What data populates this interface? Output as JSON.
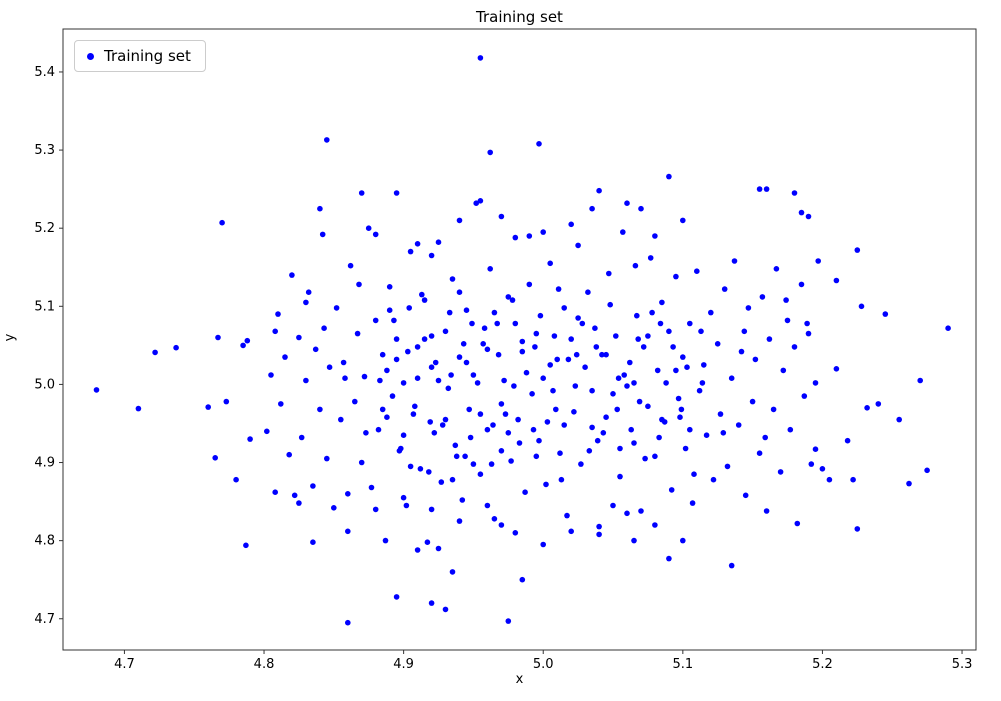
{
  "chart_data": {
    "type": "scatter",
    "title": "Training set",
    "xlabel": "x",
    "ylabel": "y",
    "legend": {
      "entries": [
        {
          "label": "Training set",
          "color": "#0000ff"
        }
      ],
      "position": "upper left"
    },
    "marker": {
      "color": "#0000ff",
      "radius_px": 2.8
    },
    "x_range": [
      4.656,
      5.31
    ],
    "y_range": [
      4.66,
      5.455
    ],
    "x_ticks": [
      4.7,
      4.8,
      4.9,
      5.0,
      5.1,
      5.2,
      5.3
    ],
    "y_ticks": [
      4.7,
      4.8,
      4.9,
      5.0,
      5.1,
      5.2,
      5.3,
      5.4
    ],
    "grid": false,
    "points": [
      [
        4.955,
        5.418
      ],
      [
        4.845,
        5.313
      ],
      [
        4.962,
        5.297
      ],
      [
        4.997,
        5.308
      ],
      [
        4.68,
        4.993
      ],
      [
        4.71,
        4.969
      ],
      [
        4.722,
        5.041
      ],
      [
        4.737,
        5.047
      ],
      [
        4.76,
        4.971
      ],
      [
        4.767,
        5.06
      ],
      [
        4.77,
        5.207
      ],
      [
        4.765,
        4.906
      ],
      [
        4.773,
        4.978
      ],
      [
        4.78,
        4.878
      ],
      [
        4.785,
        5.05
      ],
      [
        4.788,
        5.056
      ],
      [
        4.787,
        4.794
      ],
      [
        4.79,
        4.93
      ],
      [
        5.29,
        5.072
      ],
      [
        5.275,
        4.89
      ],
      [
        5.27,
        5.005
      ],
      [
        5.262,
        4.873
      ],
      [
        5.255,
        4.955
      ],
      [
        5.245,
        5.09
      ],
      [
        5.24,
        4.975
      ],
      [
        5.232,
        4.97
      ],
      [
        5.228,
        5.1
      ],
      [
        5.225,
        5.172
      ],
      [
        5.225,
        4.815
      ],
      [
        5.222,
        4.878
      ],
      [
        5.218,
        4.928
      ],
      [
        5.21,
        5.02
      ],
      [
        5.205,
        4.878
      ],
      [
        5.195,
        4.917
      ],
      [
        5.19,
        5.215
      ],
      [
        5.185,
        5.22
      ],
      [
        5.18,
        5.245
      ],
      [
        5.155,
        5.25
      ],
      [
        5.21,
        5.133
      ],
      [
        4.86,
        4.695
      ],
      [
        4.975,
        4.697
      ],
      [
        4.93,
        4.712
      ],
      [
        4.92,
        4.72
      ],
      [
        4.895,
        4.728
      ],
      [
        4.935,
        4.76
      ],
      [
        4.985,
        4.75
      ],
      [
        5.09,
        4.777
      ],
      [
        5.135,
        4.768
      ],
      [
        4.91,
        4.788
      ],
      [
        4.925,
        4.79
      ],
      [
        5.065,
        4.8
      ],
      [
        5.09,
        5.266
      ],
      [
        4.802,
        4.94
      ],
      [
        4.805,
        5.012
      ],
      [
        4.808,
        4.862
      ],
      [
        4.81,
        5.09
      ],
      [
        4.812,
        4.975
      ],
      [
        4.815,
        5.035
      ],
      [
        4.818,
        4.91
      ],
      [
        4.82,
        5.14
      ],
      [
        4.822,
        4.858
      ],
      [
        4.825,
        5.06
      ],
      [
        4.827,
        4.932
      ],
      [
        4.83,
        5.005
      ],
      [
        4.832,
        5.118
      ],
      [
        4.835,
        4.87
      ],
      [
        4.837,
        5.045
      ],
      [
        4.84,
        4.968
      ],
      [
        4.842,
        5.192
      ],
      [
        4.845,
        4.905
      ],
      [
        4.847,
        5.022
      ],
      [
        4.85,
        4.842
      ],
      [
        4.852,
        5.098
      ],
      [
        4.855,
        4.955
      ],
      [
        4.857,
        5.028
      ],
      [
        4.86,
        4.812
      ],
      [
        4.862,
        5.152
      ],
      [
        4.865,
        4.978
      ],
      [
        4.867,
        5.065
      ],
      [
        4.87,
        4.9
      ],
      [
        4.872,
        5.01
      ],
      [
        4.875,
        5.2
      ],
      [
        4.877,
        4.868
      ],
      [
        4.88,
        5.082
      ],
      [
        4.882,
        4.942
      ],
      [
        4.885,
        5.038
      ],
      [
        4.887,
        4.8
      ],
      [
        4.89,
        5.125
      ],
      [
        4.892,
        4.985
      ],
      [
        4.895,
        5.058
      ],
      [
        4.897,
        4.915
      ],
      [
        4.9,
        5.002
      ],
      [
        4.902,
        4.845
      ],
      [
        4.905,
        5.17
      ],
      [
        4.907,
        4.962
      ],
      [
        4.91,
        5.048
      ],
      [
        4.912,
        4.892
      ],
      [
        4.915,
        5.108
      ],
      [
        4.917,
        4.798
      ],
      [
        4.92,
        5.022
      ],
      [
        4.922,
        4.938
      ],
      [
        4.925,
        5.182
      ],
      [
        4.927,
        4.875
      ],
      [
        4.93,
        5.068
      ],
      [
        4.932,
        4.995
      ],
      [
        4.935,
        5.135
      ],
      [
        4.937,
        4.922
      ],
      [
        4.94,
        5.035
      ],
      [
        4.942,
        4.852
      ],
      [
        4.945,
        5.095
      ],
      [
        4.947,
        4.968
      ],
      [
        4.95,
        5.012
      ],
      [
        4.952,
        5.232
      ],
      [
        4.955,
        4.885
      ],
      [
        4.957,
        5.052
      ],
      [
        4.96,
        4.942
      ],
      [
        4.962,
        5.148
      ],
      [
        4.965,
        4.828
      ],
      [
        4.967,
        5.078
      ],
      [
        4.97,
        4.975
      ],
      [
        4.972,
        5.005
      ],
      [
        4.975,
        5.112
      ],
      [
        4.977,
        4.902
      ],
      [
        4.98,
        5.188
      ],
      [
        4.982,
        4.955
      ],
      [
        4.985,
        5.042
      ],
      [
        4.987,
        4.862
      ],
      [
        4.99,
        5.128
      ],
      [
        4.992,
        4.988
      ],
      [
        4.995,
        5.065
      ],
      [
        4.997,
        4.928
      ],
      [
        5.0,
        5.008
      ],
      [
        5.002,
        4.872
      ],
      [
        5.005,
        5.155
      ],
      [
        5.007,
        4.992
      ],
      [
        5.01,
        5.032
      ],
      [
        5.012,
        4.912
      ],
      [
        5.015,
        5.098
      ],
      [
        5.017,
        4.832
      ],
      [
        5.02,
        5.058
      ],
      [
        5.022,
        4.965
      ],
      [
        5.025,
        5.178
      ],
      [
        5.027,
        4.898
      ],
      [
        5.03,
        5.022
      ],
      [
        5.032,
        5.118
      ],
      [
        5.035,
        4.945
      ],
      [
        5.037,
        5.072
      ],
      [
        5.04,
        4.818
      ],
      [
        5.042,
        5.038
      ],
      [
        5.045,
        4.958
      ],
      [
        5.047,
        5.142
      ],
      [
        5.05,
        4.988
      ],
      [
        5.052,
        5.062
      ],
      [
        5.055,
        4.882
      ],
      [
        5.057,
        5.195
      ],
      [
        5.06,
        4.998
      ],
      [
        5.062,
        5.028
      ],
      [
        5.065,
        4.925
      ],
      [
        5.067,
        5.088
      ],
      [
        5.07,
        4.838
      ],
      [
        5.072,
        5.048
      ],
      [
        5.075,
        4.972
      ],
      [
        5.077,
        5.162
      ],
      [
        5.08,
        4.908
      ],
      [
        5.082,
        5.018
      ],
      [
        5.085,
        5.105
      ],
      [
        5.087,
        4.952
      ],
      [
        5.09,
        5.068
      ],
      [
        5.092,
        4.865
      ],
      [
        5.095,
        5.138
      ],
      [
        5.097,
        4.982
      ],
      [
        5.1,
        5.035
      ],
      [
        5.102,
        4.918
      ],
      [
        5.105,
        5.078
      ],
      [
        5.107,
        4.848
      ],
      [
        5.11,
        5.145
      ],
      [
        5.112,
        4.992
      ],
      [
        5.115,
        5.025
      ],
      [
        5.117,
        4.935
      ],
      [
        5.12,
        5.092
      ],
      [
        5.122,
        4.878
      ],
      [
        5.125,
        5.052
      ],
      [
        5.127,
        4.962
      ],
      [
        5.13,
        5.122
      ],
      [
        5.132,
        4.895
      ],
      [
        5.135,
        5.008
      ],
      [
        5.137,
        5.158
      ],
      [
        5.14,
        4.948
      ],
      [
        5.142,
        5.042
      ],
      [
        5.145,
        4.858
      ],
      [
        5.147,
        5.098
      ],
      [
        5.15,
        4.978
      ],
      [
        5.152,
        5.032
      ],
      [
        5.155,
        4.912
      ],
      [
        5.157,
        5.112
      ],
      [
        5.16,
        4.838
      ],
      [
        5.162,
        5.058
      ],
      [
        5.165,
        4.968
      ],
      [
        5.167,
        5.148
      ],
      [
        5.17,
        4.888
      ],
      [
        5.172,
        5.018
      ],
      [
        5.175,
        5.082
      ],
      [
        5.177,
        4.942
      ],
      [
        5.18,
        5.048
      ],
      [
        5.182,
        4.822
      ],
      [
        5.185,
        5.128
      ],
      [
        5.187,
        4.985
      ],
      [
        5.19,
        5.065
      ],
      [
        5.192,
        4.898
      ],
      [
        5.195,
        5.002
      ],
      [
        5.197,
        5.158
      ],
      [
        5.2,
        4.892
      ],
      [
        4.883,
        5.005
      ],
      [
        4.888,
        4.958
      ],
      [
        4.893,
        5.082
      ],
      [
        4.898,
        4.918
      ],
      [
        4.903,
        5.042
      ],
      [
        4.908,
        4.972
      ],
      [
        4.913,
        5.115
      ],
      [
        4.918,
        4.888
      ],
      [
        4.923,
        5.028
      ],
      [
        4.928,
        4.948
      ],
      [
        4.933,
        5.092
      ],
      [
        4.938,
        4.908
      ],
      [
        4.943,
        5.052
      ],
      [
        4.948,
        4.932
      ],
      [
        4.953,
        5.002
      ],
      [
        4.958,
        5.072
      ],
      [
        4.963,
        4.898
      ],
      [
        4.968,
        5.038
      ],
      [
        4.973,
        4.962
      ],
      [
        4.978,
        5.108
      ],
      [
        4.983,
        4.925
      ],
      [
        4.988,
        5.015
      ],
      [
        4.993,
        4.942
      ],
      [
        4.998,
        5.088
      ],
      [
        5.003,
        4.952
      ],
      [
        5.008,
        5.062
      ],
      [
        5.013,
        4.878
      ],
      [
        5.018,
        5.032
      ],
      [
        5.023,
        4.998
      ],
      [
        5.028,
        5.078
      ],
      [
        5.033,
        4.915
      ],
      [
        5.038,
        5.048
      ],
      [
        5.043,
        4.938
      ],
      [
        5.048,
        5.102
      ],
      [
        5.053,
        4.968
      ],
      [
        5.058,
        5.012
      ],
      [
        5.063,
        4.942
      ],
      [
        5.068,
        5.058
      ],
      [
        5.073,
        4.905
      ],
      [
        5.078,
        5.092
      ],
      [
        5.083,
        4.932
      ],
      [
        5.088,
        5.002
      ],
      [
        5.093,
        5.048
      ],
      [
        5.098,
        4.958
      ],
      [
        5.103,
        5.022
      ],
      [
        5.108,
        4.885
      ],
      [
        5.113,
        5.068
      ],
      [
        4.885,
        4.968
      ],
      [
        4.895,
        5.032
      ],
      [
        4.905,
        4.895
      ],
      [
        4.915,
        5.058
      ],
      [
        4.925,
        5.005
      ],
      [
        4.935,
        4.878
      ],
      [
        4.945,
        5.028
      ],
      [
        4.955,
        4.962
      ],
      [
        4.965,
        5.092
      ],
      [
        4.975,
        4.938
      ],
      [
        4.985,
        5.055
      ],
      [
        4.995,
        4.908
      ],
      [
        5.005,
        5.025
      ],
      [
        5.015,
        4.948
      ],
      [
        5.025,
        5.085
      ],
      [
        5.035,
        4.992
      ],
      [
        5.045,
        5.038
      ],
      [
        5.055,
        4.918
      ],
      [
        5.065,
        5.002
      ],
      [
        5.075,
        5.062
      ],
      [
        5.085,
        4.955
      ],
      [
        5.095,
        5.018
      ],
      [
        5.105,
        4.942
      ],
      [
        4.89,
        5.095
      ],
      [
        4.9,
        4.935
      ],
      [
        4.91,
        5.008
      ],
      [
        4.92,
        5.062
      ],
      [
        4.93,
        4.955
      ],
      [
        4.94,
        5.118
      ],
      [
        4.95,
        4.898
      ],
      [
        4.96,
        5.045
      ],
      [
        4.97,
        4.915
      ],
      [
        4.98,
        5.078
      ],
      [
        4.83,
        5.105
      ],
      [
        4.84,
        5.225
      ],
      [
        4.87,
        5.245
      ],
      [
        4.88,
        5.192
      ],
      [
        4.895,
        5.245
      ],
      [
        4.91,
        5.18
      ],
      [
        4.92,
        5.165
      ],
      [
        4.94,
        5.21
      ],
      [
        4.955,
        5.235
      ],
      [
        4.97,
        5.215
      ],
      [
        4.99,
        5.19
      ],
      [
        5.0,
        5.195
      ],
      [
        5.02,
        5.205
      ],
      [
        5.04,
        5.248
      ],
      [
        5.06,
        5.232
      ],
      [
        5.07,
        5.225
      ],
      [
        5.08,
        5.19
      ],
      [
        5.1,
        5.21
      ],
      [
        5.16,
        5.25
      ],
      [
        5.035,
        5.225
      ],
      [
        4.86,
        4.86
      ],
      [
        4.88,
        4.84
      ],
      [
        4.9,
        4.855
      ],
      [
        4.92,
        4.84
      ],
      [
        4.94,
        4.825
      ],
      [
        4.96,
        4.845
      ],
      [
        4.98,
        4.81
      ],
      [
        5.0,
        4.795
      ],
      [
        5.02,
        4.812
      ],
      [
        5.04,
        4.808
      ],
      [
        5.06,
        4.835
      ],
      [
        5.08,
        4.82
      ],
      [
        5.1,
        4.8
      ],
      [
        4.835,
        4.798
      ],
      [
        4.97,
        4.82
      ],
      [
        5.05,
        4.845
      ],
      [
        4.808,
        5.068
      ],
      [
        4.825,
        4.848
      ],
      [
        4.843,
        5.072
      ],
      [
        4.858,
        5.008
      ],
      [
        4.873,
        4.938
      ],
      [
        4.888,
        5.018
      ],
      [
        4.904,
        5.098
      ],
      [
        4.919,
        4.952
      ],
      [
        4.934,
        5.012
      ],
      [
        4.949,
        5.078
      ],
      [
        4.964,
        4.948
      ],
      [
        4.979,
        4.998
      ],
      [
        4.994,
        5.048
      ],
      [
        5.009,
        4.968
      ],
      [
        5.024,
        5.038
      ],
      [
        5.039,
        4.928
      ],
      [
        5.054,
        5.008
      ],
      [
        5.069,
        4.978
      ],
      [
        5.084,
        5.078
      ],
      [
        5.099,
        4.968
      ],
      [
        5.114,
        5.002
      ],
      [
        5.129,
        4.938
      ],
      [
        5.144,
        5.068
      ],
      [
        5.159,
        4.932
      ],
      [
        5.174,
        5.108
      ],
      [
        5.189,
        5.078
      ],
      [
        4.868,
        5.128
      ],
      [
        4.944,
        4.908
      ],
      [
        5.011,
        5.122
      ],
      [
        5.066,
        5.152
      ]
    ]
  }
}
